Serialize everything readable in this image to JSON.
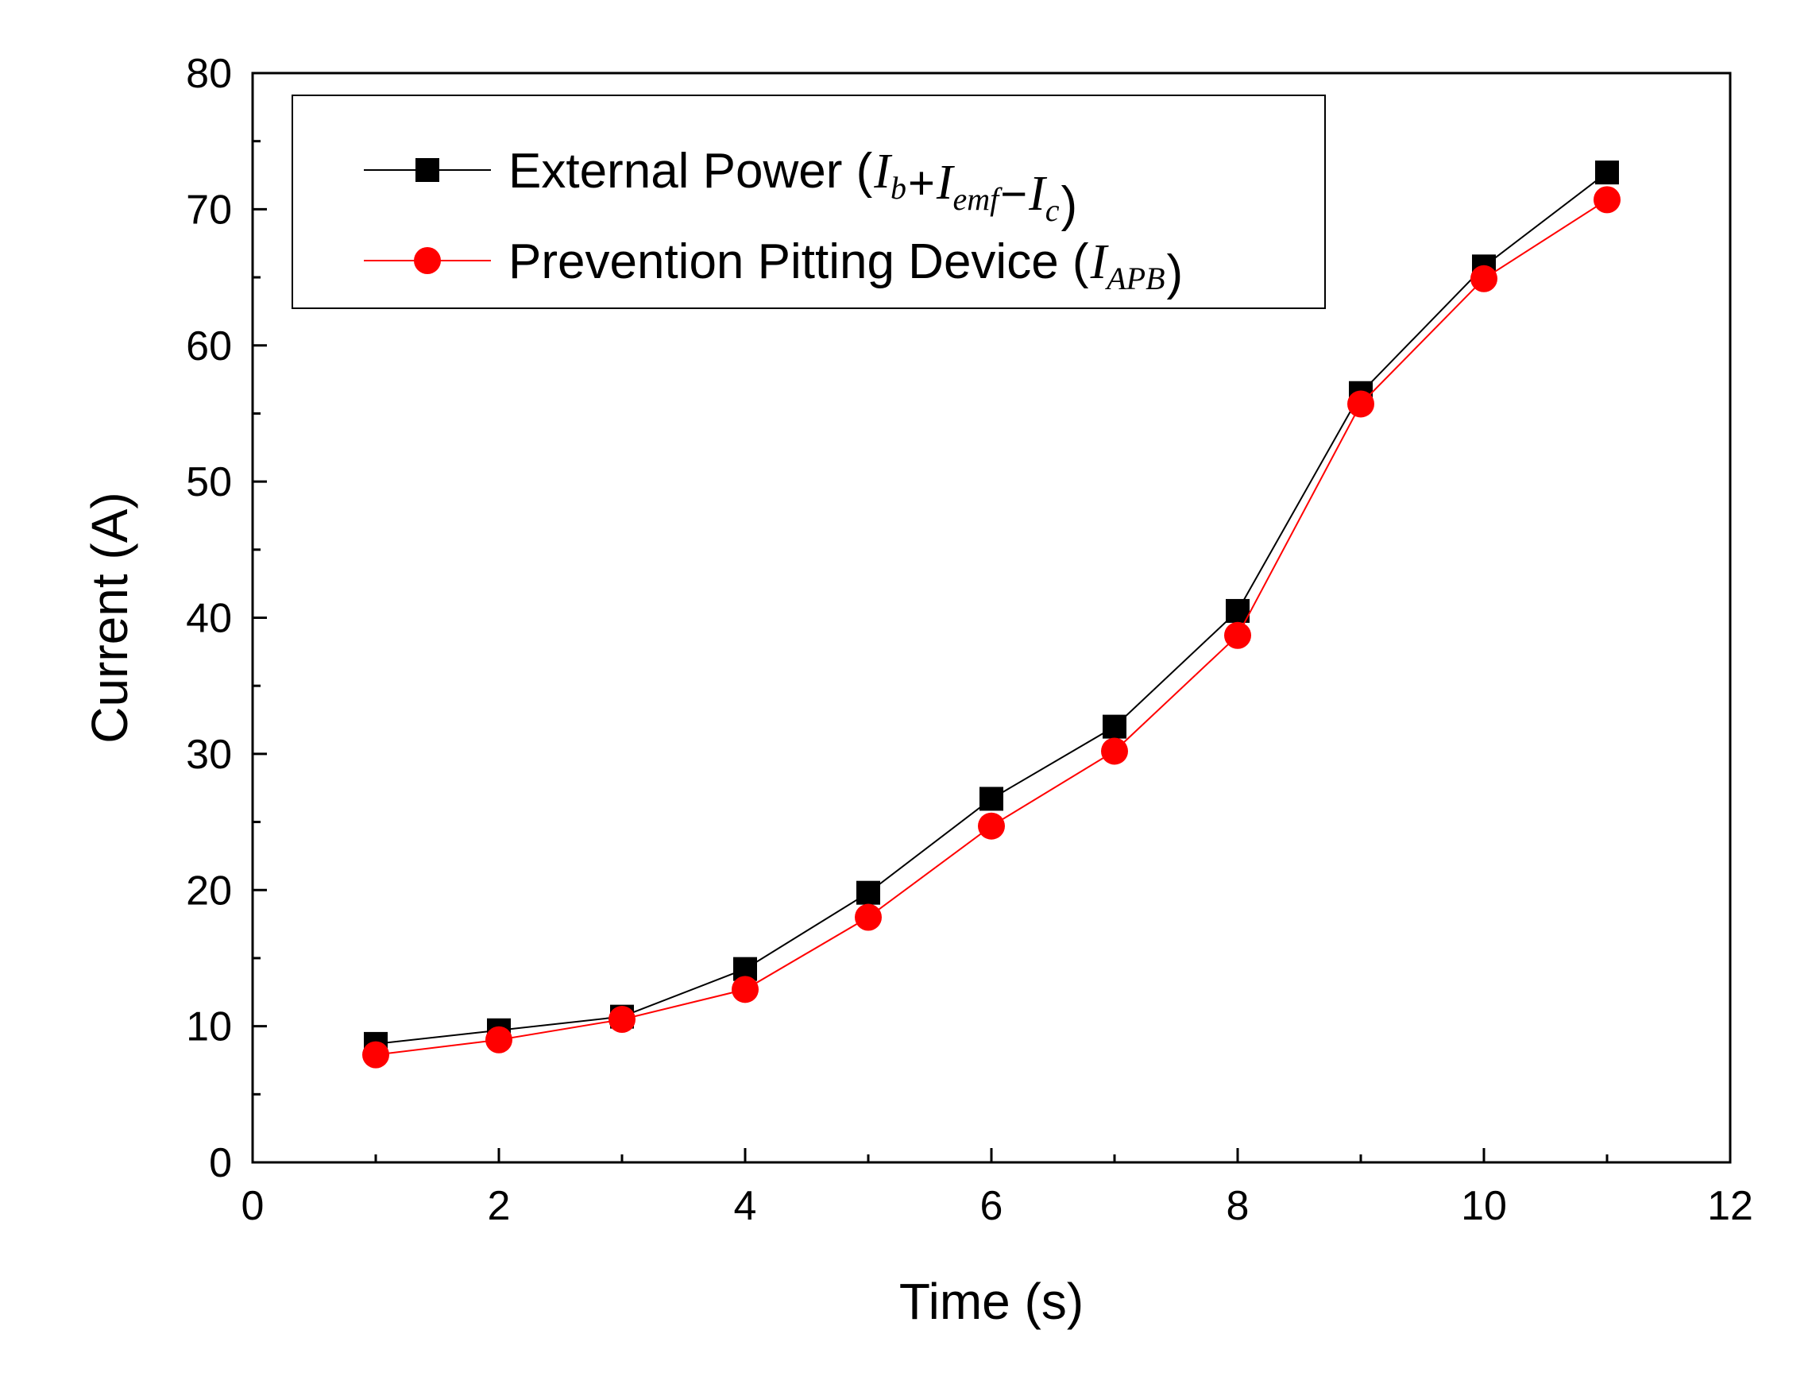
{
  "chart_data": {
    "type": "line",
    "title": "",
    "xlabel": "Time (s)",
    "ylabel": "Current (A)",
    "xlim": [
      0,
      12
    ],
    "ylim": [
      0,
      80
    ],
    "xticks": [
      0,
      2,
      4,
      6,
      8,
      10,
      12
    ],
    "yticks": [
      0,
      10,
      20,
      30,
      40,
      50,
      60,
      70,
      80
    ],
    "xtick_labels": [
      "0",
      "2",
      "4",
      "6",
      "8",
      "10",
      "12"
    ],
    "ytick_labels": [
      "0",
      "10",
      "20",
      "30",
      "40",
      "50",
      "60",
      "70",
      "80"
    ],
    "grid": false,
    "legend_position": "top-left",
    "x": [
      1,
      2,
      3,
      4,
      5,
      6,
      7,
      8,
      9,
      10,
      11
    ],
    "series": [
      {
        "name": "External Power",
        "legend_prefix": "External Power (",
        "legend_math": [
          {
            "main": "I",
            "sub": "b"
          },
          {
            "op": "+"
          },
          {
            "main": "I",
            "sub": "emf"
          },
          {
            "op": "−"
          },
          {
            "main": "I",
            "sub": "c"
          }
        ],
        "legend_suffix": ")",
        "marker": "square",
        "line_color": "#000000",
        "marker_color": "#000000",
        "values": [
          8.7,
          9.7,
          10.7,
          14.2,
          19.8,
          26.7,
          32.0,
          40.5,
          56.5,
          65.8,
          72.7
        ]
      },
      {
        "name": "Prevention Pitting Device",
        "legend_prefix": "Prevention Pitting Device (",
        "legend_math": [
          {
            "main": "I",
            "sub": "APB"
          }
        ],
        "legend_suffix": ")",
        "marker": "circle",
        "line_color": "#ff0000",
        "marker_color": "#ff0000",
        "values": [
          7.9,
          9.0,
          10.5,
          12.7,
          18.0,
          24.7,
          30.2,
          38.7,
          55.7,
          64.9,
          70.7
        ]
      }
    ]
  }
}
